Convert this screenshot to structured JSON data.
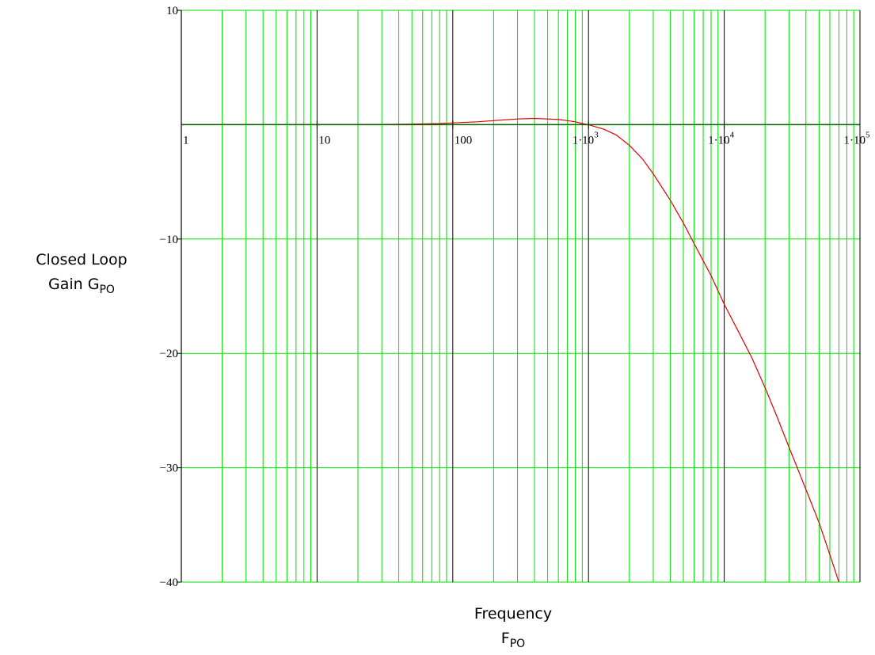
{
  "chart_data": {
    "type": "line",
    "title": "",
    "x_scale": "log",
    "xlim": [
      1,
      100000
    ],
    "ylim": [
      -40,
      10
    ],
    "grid": true,
    "xlabel": {
      "line1": "Frequency",
      "line2_main": "F",
      "line2_sub": "PO"
    },
    "ylabel": {
      "line1": "Closed Loop",
      "line2_main": "Gain G",
      "line2_sub": "PO"
    },
    "x_ticks": [
      {
        "value": 1,
        "label": "1",
        "sup": ""
      },
      {
        "value": 10,
        "label": "10",
        "sup": ""
      },
      {
        "value": 100,
        "label": "100",
        "sup": ""
      },
      {
        "value": 1000,
        "label": "1·10",
        "sup": "3"
      },
      {
        "value": 10000,
        "label": "1·10",
        "sup": "4"
      },
      {
        "value": 100000,
        "label": "1·10",
        "sup": "5"
      }
    ],
    "y_ticks": [
      {
        "value": 10,
        "label": "10"
      },
      {
        "value": -10,
        "label": "−10"
      },
      {
        "value": -20,
        "label": "−20"
      },
      {
        "value": -30,
        "label": "−30"
      },
      {
        "value": -40,
        "label": "−40"
      }
    ],
    "series": [
      {
        "name": "",
        "color": "#e00000",
        "x": [
          1,
          10,
          30,
          50,
          80,
          100,
          150,
          200,
          300,
          400,
          500,
          600,
          700,
          800,
          900,
          1000,
          1300,
          1600,
          2000,
          2500,
          3000,
          4000,
          5000,
          6000,
          7000,
          8000,
          10000,
          13000,
          16000,
          20000,
          25000,
          30000,
          40000,
          50000,
          60000,
          70000
        ],
        "y": [
          0,
          0,
          0.02,
          0.05,
          0.1,
          0.15,
          0.25,
          0.35,
          0.5,
          0.55,
          0.5,
          0.45,
          0.35,
          0.25,
          0.1,
          0,
          -0.4,
          -0.9,
          -1.8,
          -3,
          -4.3,
          -6.6,
          -8.6,
          -10.4,
          -11.9,
          -13.2,
          -15.7,
          -18.3,
          -20.4,
          -23,
          -25.8,
          -28.2,
          -31.9,
          -34.8,
          -37.6,
          -40
        ]
      },
      {
        "name": "",
        "color": "#006000",
        "x": [
          1,
          100000
        ],
        "y": [
          0,
          0
        ]
      }
    ],
    "colors": {
      "grid_minor": "#00dd00",
      "grid_decade": "#000000",
      "background": "#ffffff"
    }
  }
}
